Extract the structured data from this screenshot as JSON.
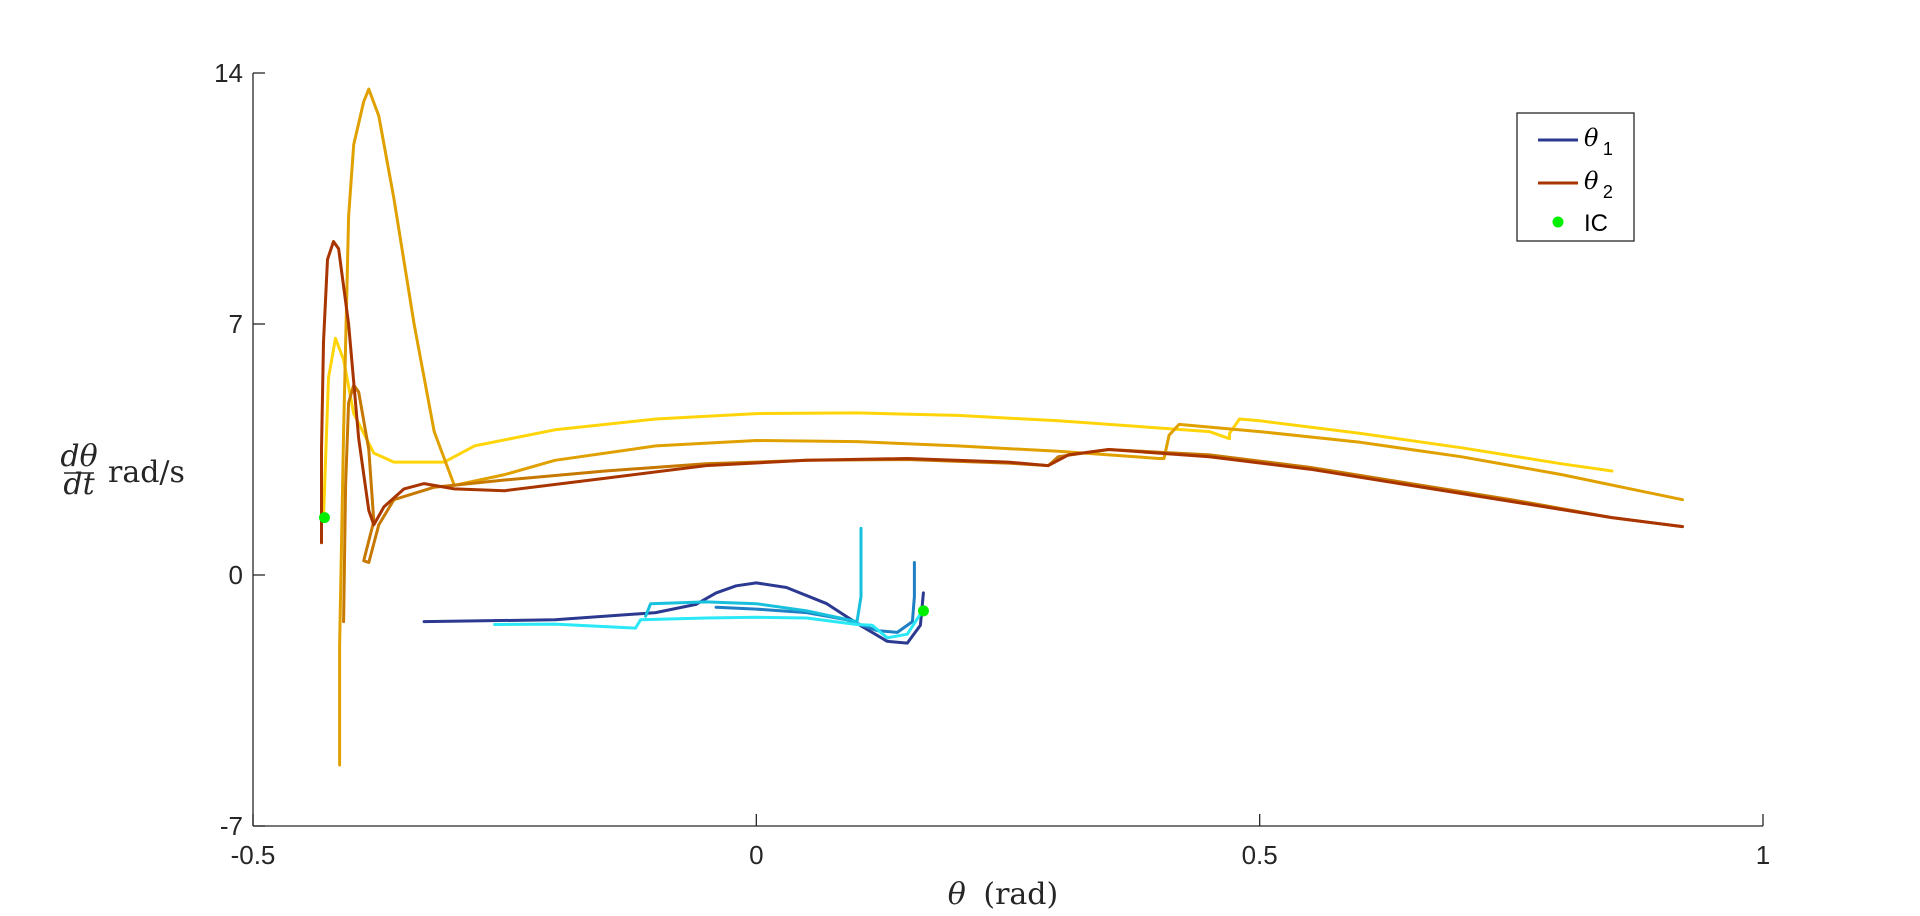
{
  "chart_data": {
    "type": "line",
    "title": "",
    "xlabel_var": "θ",
    "xlabel_unit": "(rad)",
    "ylabel_num": "dθ",
    "ylabel_den": "dt",
    "ylabel_unit": "rad/s",
    "xlim": [
      -0.5,
      1
    ],
    "ylim": [
      -7,
      14
    ],
    "xticks": [
      -0.5,
      0,
      0.5,
      1
    ],
    "xtick_labels": [
      "-0.5",
      "0",
      "0.5",
      "1"
    ],
    "yticks": [
      -7,
      0,
      7,
      14
    ],
    "ytick_labels": [
      "-7",
      "0",
      "7",
      "14"
    ],
    "grid": false,
    "legend": {
      "placement": "top-right",
      "entries": [
        {
          "symbol": "θ",
          "sub": "1",
          "color": "#2b3990",
          "kind": "line"
        },
        {
          "symbol": "θ",
          "sub": "2",
          "color": "#a83500",
          "kind": "line"
        },
        {
          "label": "IC",
          "color": "#00ee00",
          "kind": "marker"
        }
      ]
    },
    "series": [
      {
        "group": "theta1",
        "color": "#2b3990",
        "points": [
          [
            -0.33,
            -1.3
          ],
          [
            -0.2,
            -1.25
          ],
          [
            -0.1,
            -1.05
          ],
          [
            -0.06,
            -0.82
          ],
          [
            -0.04,
            -0.5
          ],
          [
            -0.02,
            -0.3
          ],
          [
            0.0,
            -0.22
          ],
          [
            0.03,
            -0.35
          ],
          [
            0.07,
            -0.8
          ],
          [
            0.1,
            -1.35
          ],
          [
            0.13,
            -1.85
          ],
          [
            0.15,
            -1.9
          ],
          [
            0.163,
            -1.4
          ],
          [
            0.165,
            -0.8
          ],
          [
            0.166,
            -0.5
          ]
        ]
      },
      {
        "group": "theta1",
        "color": "#1f7fc4",
        "points": [
          [
            -0.04,
            -0.9
          ],
          [
            0.0,
            -0.95
          ],
          [
            0.05,
            -1.05
          ],
          [
            0.09,
            -1.25
          ],
          [
            0.12,
            -1.55
          ],
          [
            0.14,
            -1.6
          ],
          [
            0.155,
            -1.3
          ],
          [
            0.157,
            -0.6
          ],
          [
            0.157,
            0.35
          ]
        ]
      },
      {
        "group": "theta1",
        "color": "#17c0dc",
        "points": [
          [
            -0.11,
            -1.15
          ],
          [
            -0.105,
            -0.8
          ],
          [
            -0.05,
            -0.75
          ],
          [
            0.0,
            -0.8
          ],
          [
            0.05,
            -1.0
          ],
          [
            0.1,
            -1.3
          ],
          [
            0.104,
            -0.6
          ],
          [
            0.104,
            1.3
          ]
        ]
      },
      {
        "group": "theta1",
        "color": "#2ae8f5",
        "points": [
          [
            -0.26,
            -1.38
          ],
          [
            -0.2,
            -1.37
          ],
          [
            -0.12,
            -1.48
          ],
          [
            -0.115,
            -1.25
          ],
          [
            -0.05,
            -1.2
          ],
          [
            0.0,
            -1.18
          ],
          [
            0.05,
            -1.2
          ],
          [
            0.1,
            -1.38
          ],
          [
            0.115,
            -1.4
          ],
          [
            0.13,
            -1.75
          ],
          [
            0.15,
            -1.65
          ],
          [
            0.165,
            -1.0
          ]
        ]
      },
      {
        "group": "theta2",
        "color": "#ffd50a",
        "points": [
          [
            -0.43,
            1.6
          ],
          [
            -0.425,
            5.5
          ],
          [
            -0.418,
            6.6
          ],
          [
            -0.41,
            6.0
          ],
          [
            -0.4,
            4.5
          ],
          [
            -0.38,
            3.4
          ],
          [
            -0.36,
            3.15
          ],
          [
            -0.31,
            3.15
          ],
          [
            -0.28,
            3.6
          ],
          [
            -0.2,
            4.05
          ],
          [
            -0.1,
            4.35
          ],
          [
            0.0,
            4.5
          ],
          [
            0.1,
            4.52
          ],
          [
            0.2,
            4.45
          ],
          [
            0.3,
            4.3
          ],
          [
            0.4,
            4.1
          ],
          [
            0.45,
            4.0
          ],
          [
            0.47,
            3.8
          ],
          [
            0.47,
            3.95
          ],
          [
            0.48,
            4.35
          ],
          [
            0.5,
            4.3
          ],
          [
            0.6,
            3.95
          ],
          [
            0.7,
            3.55
          ],
          [
            0.8,
            3.1
          ],
          [
            0.85,
            2.9
          ]
        ]
      },
      {
        "group": "theta2",
        "color": "#e0a100",
        "points": [
          [
            -0.414,
            -5.3
          ],
          [
            -0.414,
            -2.0
          ],
          [
            -0.41,
            4.0
          ],
          [
            -0.405,
            10.0
          ],
          [
            -0.4,
            12.0
          ],
          [
            -0.39,
            13.2
          ],
          [
            -0.385,
            13.55
          ],
          [
            -0.375,
            12.8
          ],
          [
            -0.36,
            10.5
          ],
          [
            -0.34,
            7.0
          ],
          [
            -0.32,
            4.0
          ],
          [
            -0.3,
            2.5
          ],
          [
            -0.25,
            2.8
          ],
          [
            -0.2,
            3.2
          ],
          [
            -0.1,
            3.6
          ],
          [
            0.0,
            3.75
          ],
          [
            0.1,
            3.72
          ],
          [
            0.2,
            3.6
          ],
          [
            0.3,
            3.45
          ],
          [
            0.4,
            3.25
          ],
          [
            0.405,
            3.25
          ],
          [
            0.41,
            3.9
          ],
          [
            0.42,
            4.2
          ],
          [
            0.5,
            4.0
          ],
          [
            0.6,
            3.7
          ],
          [
            0.7,
            3.3
          ],
          [
            0.8,
            2.8
          ],
          [
            0.92,
            2.1
          ]
        ]
      },
      {
        "group": "theta2",
        "color": "#c77800",
        "points": [
          [
            -0.41,
            -1.3
          ],
          [
            -0.408,
            2.5
          ],
          [
            -0.405,
            4.8
          ],
          [
            -0.4,
            5.3
          ],
          [
            -0.395,
            5.1
          ],
          [
            -0.385,
            3.5
          ],
          [
            -0.38,
            1.5
          ],
          [
            -0.39,
            0.4
          ],
          [
            -0.385,
            0.35
          ],
          [
            -0.375,
            1.4
          ],
          [
            -0.36,
            2.1
          ],
          [
            -0.32,
            2.45
          ],
          [
            -0.25,
            2.65
          ],
          [
            -0.15,
            2.9
          ],
          [
            -0.05,
            3.1
          ],
          [
            0.05,
            3.2
          ],
          [
            0.15,
            3.22
          ],
          [
            0.25,
            3.12
          ],
          [
            0.29,
            3.05
          ],
          [
            0.3,
            3.3
          ],
          [
            0.35,
            3.5
          ],
          [
            0.45,
            3.35
          ],
          [
            0.55,
            3.0
          ],
          [
            0.65,
            2.55
          ],
          [
            0.75,
            2.1
          ],
          [
            0.85,
            1.6
          ],
          [
            0.92,
            1.35
          ]
        ]
      },
      {
        "group": "theta2",
        "color": "#a83500",
        "points": [
          [
            -0.432,
            0.9
          ],
          [
            -0.432,
            3.5
          ],
          [
            -0.43,
            6.5
          ],
          [
            -0.426,
            8.8
          ],
          [
            -0.42,
            9.3
          ],
          [
            -0.415,
            9.1
          ],
          [
            -0.405,
            7.0
          ],
          [
            -0.395,
            3.8
          ],
          [
            -0.385,
            1.8
          ],
          [
            -0.38,
            1.4
          ],
          [
            -0.37,
            1.9
          ],
          [
            -0.35,
            2.4
          ],
          [
            -0.33,
            2.55
          ],
          [
            -0.3,
            2.4
          ],
          [
            -0.25,
            2.35
          ],
          [
            -0.15,
            2.7
          ],
          [
            -0.05,
            3.05
          ],
          [
            0.05,
            3.2
          ],
          [
            0.15,
            3.25
          ],
          [
            0.25,
            3.15
          ],
          [
            0.29,
            3.05
          ],
          [
            0.31,
            3.35
          ],
          [
            0.35,
            3.5
          ],
          [
            0.45,
            3.3
          ],
          [
            0.55,
            2.95
          ],
          [
            0.65,
            2.5
          ],
          [
            0.75,
            2.05
          ],
          [
            0.85,
            1.6
          ],
          [
            0.92,
            1.35
          ]
        ]
      }
    ],
    "initial_conditions": [
      {
        "x": -0.429,
        "y": 1.6,
        "color": "#00ee00"
      },
      {
        "x": 0.166,
        "y": -1.0,
        "color": "#00ee00"
      }
    ]
  }
}
